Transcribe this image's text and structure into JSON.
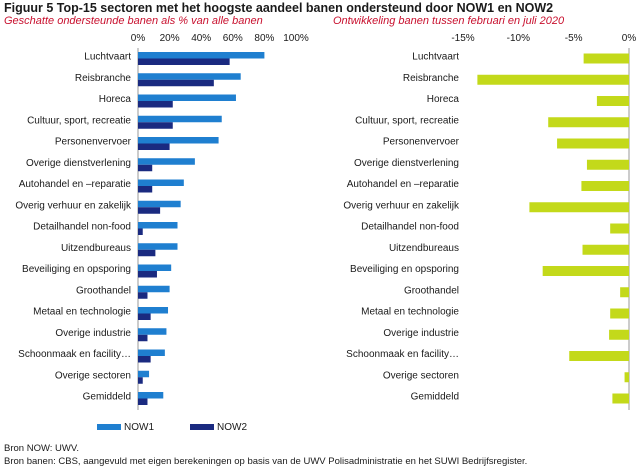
{
  "figure": {
    "title": "Figuur 5 Top-15 sectoren met het hoogste aandeel banen ondersteund door NOW1 en NOW2",
    "subtitle_left": "Geschatte ondersteunde banen als % van alle banen",
    "subtitle_right": "Ontwikkeling banen tussen februari en juli 2020",
    "source_1": "Bron NOW: UWV.",
    "source_2": "Bron banen: CBS, aangevuld met eigen berekeningen op basis van de UWV Polisadministratie en het SUWI Bedrijfsregister."
  },
  "colors": {
    "now1": "#1f7fd0",
    "now2": "#1a2a80",
    "change": "#c3d91a",
    "subtitle": "#c8102e",
    "text": "#1a1a1a"
  },
  "chart_data": [
    {
      "type": "bar",
      "orientation": "horizontal",
      "title": "Geschatte ondersteunde banen als % van alle banen",
      "categories": [
        "Luchtvaart",
        "Reisbranche",
        "Horeca",
        "Cultuur, sport, recreatie",
        "Personenvervoer",
        "Overige dienstverlening",
        "Autohandel en –reparatie",
        "Overig verhuur en zakelijk",
        "Detailhandel non-food",
        "Uitzendbureaus",
        "Beveiliging en opsporing",
        "Groothandel",
        "Metaal en technologie",
        "Overige industrie",
        "Schoonmaak en facility…",
        "Overige sectoren",
        "Gemiddeld"
      ],
      "series": [
        {
          "name": "NOW1",
          "values": [
            80,
            65,
            62,
            53,
            51,
            36,
            29,
            27,
            25,
            25,
            21,
            20,
            19,
            18,
            17,
            7,
            16
          ]
        },
        {
          "name": "NOW2",
          "values": [
            58,
            48,
            22,
            22,
            20,
            9,
            9,
            14,
            3,
            11,
            12,
            6,
            8,
            6,
            8,
            3,
            6
          ]
        }
      ],
      "xlim": [
        0,
        100
      ],
      "xticks": [
        0,
        20,
        40,
        60,
        80,
        100
      ],
      "tick_labels": [
        "0%",
        "20%",
        "40%",
        "60%",
        "80%",
        "100%"
      ],
      "legend": [
        "NOW1",
        "NOW2"
      ],
      "legend_position": "bottom"
    },
    {
      "type": "bar",
      "orientation": "horizontal",
      "title": "Ontwikkeling banen tussen februari en juli 2020",
      "categories": [
        "Luchtvaart",
        "Reisbranche",
        "Horeca",
        "Cultuur, sport, recreatie",
        "Personenvervoer",
        "Overige dienstverlening",
        "Autohandel en –reparatie",
        "Overig verhuur en zakelijk",
        "Detailhandel non-food",
        "Uitzendbureaus",
        "Beveiliging en opsporing",
        "Groothandel",
        "Metaal en technologie",
        "Overige industrie",
        "Schoonmaak en facility…",
        "Overige sectoren",
        "Gemiddeld"
      ],
      "series": [
        {
          "name": "Ontwikkeling banen",
          "values": [
            -4.1,
            -13.7,
            -2.9,
            -7.3,
            -6.5,
            -3.8,
            -4.3,
            -9.0,
            -1.7,
            -4.2,
            -7.8,
            -0.8,
            -1.7,
            -1.8,
            -5.4,
            -0.4,
            -1.5
          ]
        }
      ],
      "xlim": [
        -15,
        0
      ],
      "xticks": [
        -15,
        -10,
        -5,
        0
      ],
      "tick_labels": [
        "-15%",
        "-10%",
        "-5%",
        "0%"
      ]
    }
  ]
}
